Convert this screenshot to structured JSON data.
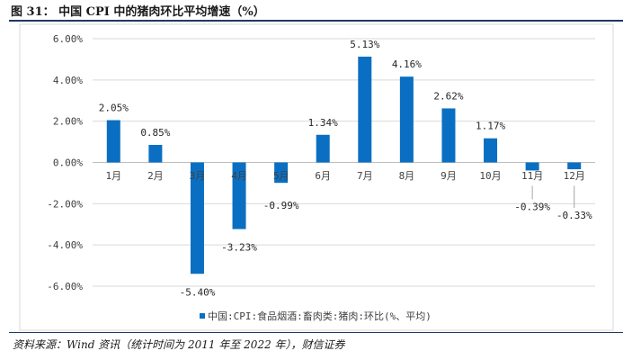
{
  "figure": {
    "title": "图 31： 中国 CPI 中的猪肉环比平均增速（%）",
    "source": "资料来源：Wind 资讯（统计时间为 2011 年至 2022 年），财信证券"
  },
  "colors": {
    "bar": "#0a6fc2",
    "grid": "#d9d9d9",
    "axis": "#bfbfbf",
    "rule": "#1f3864"
  },
  "chart_data": {
    "type": "bar",
    "title": "",
    "xlabel": "",
    "ylabel": "",
    "categories": [
      "1月",
      "2月",
      "3月",
      "4月",
      "5月",
      "6月",
      "7月",
      "8月",
      "9月",
      "10月",
      "11月",
      "12月"
    ],
    "series": [
      {
        "name": "中国:CPI:食品烟酒:畜肉类:猪肉:环比(%、平均)",
        "values": [
          2.05,
          0.85,
          -5.4,
          -3.23,
          -0.99,
          1.34,
          5.13,
          4.16,
          2.62,
          1.17,
          -0.39,
          -0.33
        ]
      }
    ],
    "data_labels": [
      "2.05%",
      "0.85%",
      "-5.40%",
      "-3.23%",
      "-0.99%",
      "1.34%",
      "5.13%",
      "4.16%",
      "2.62%",
      "1.17%",
      "-0.39%",
      "-0.33%"
    ],
    "yticks": [
      6,
      4,
      2,
      0,
      -2,
      -4,
      -6
    ],
    "ytick_labels": [
      "6.00%",
      "4.00%",
      "2.00%",
      "0.00%",
      "-2.00%",
      "-4.00%",
      "-6.00%"
    ],
    "ylim": [
      -6,
      6
    ],
    "grid": true,
    "legend": "bottom"
  }
}
